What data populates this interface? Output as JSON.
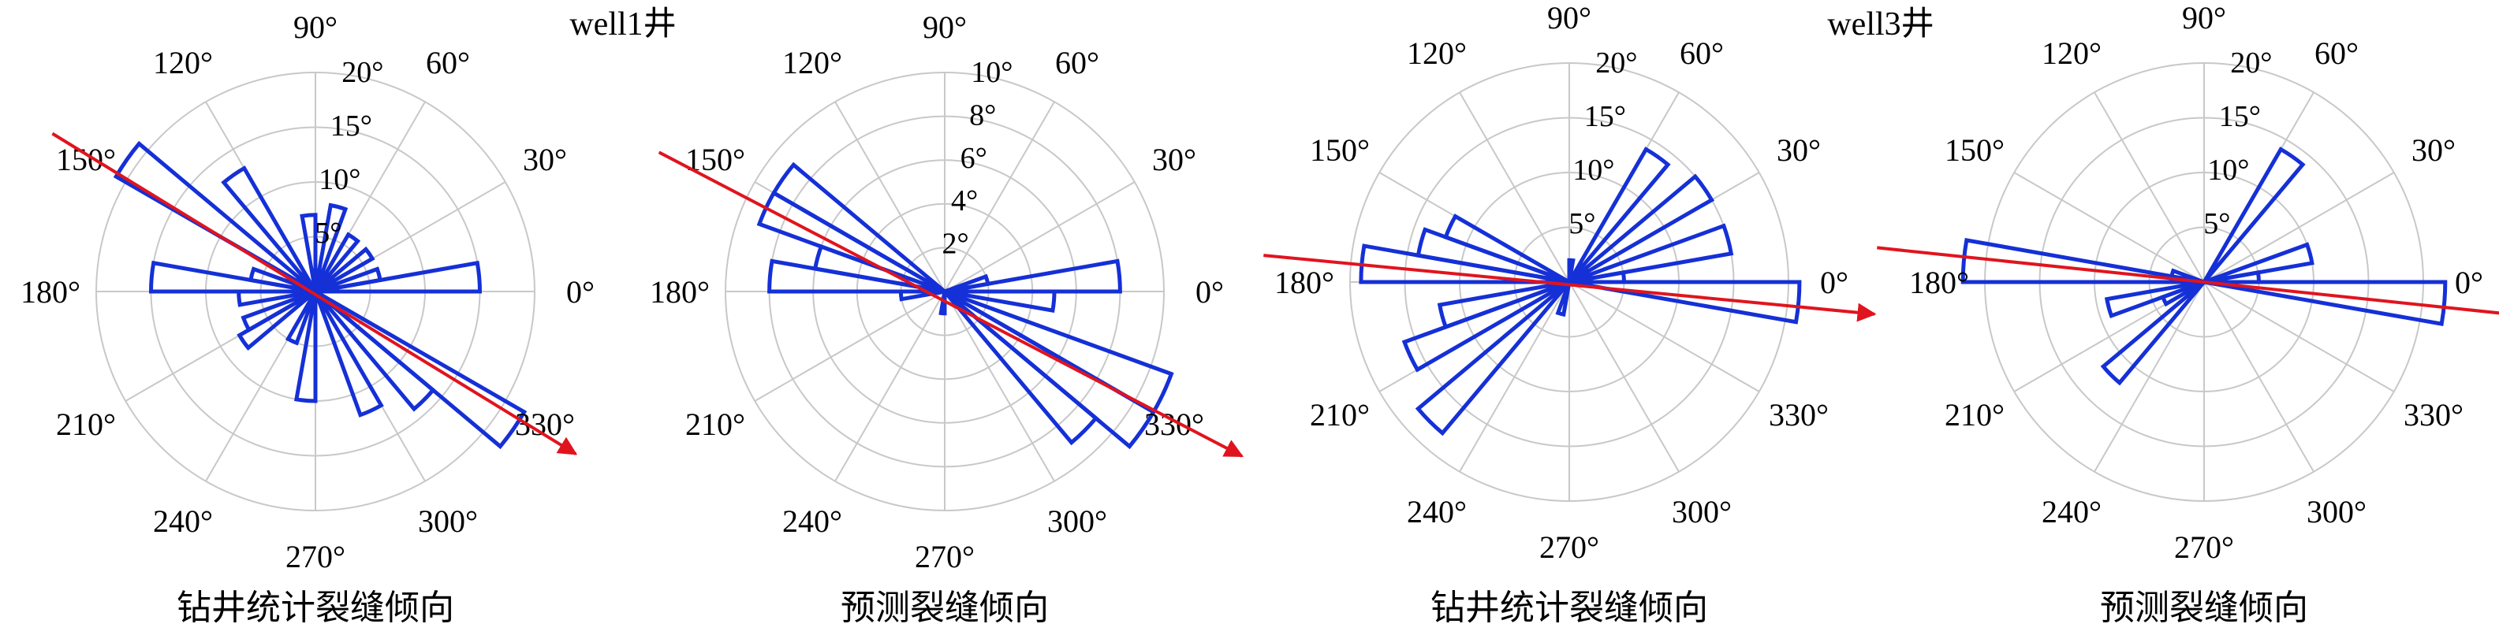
{
  "figure": {
    "well_titles": [
      "well1井",
      "well3井"
    ],
    "colors": {
      "grid": "#c8c8c8",
      "bars": "#1530d6",
      "trend": "#e0141e",
      "text": "#000000"
    }
  },
  "chart_data": [
    {
      "type": "polar-histogram",
      "well_title": "well1井",
      "caption": "钻井统计裂缝倾向",
      "angle_labels": [
        "0°",
        "30°",
        "60°",
        "90°",
        "120°",
        "150°",
        "180°",
        "210°",
        "240°",
        "270°",
        "300°",
        "330°"
      ],
      "radial_ticks": [
        5,
        10,
        15,
        20
      ],
      "radial_tick_labels": [
        "5°",
        "10°",
        "15°",
        "20°"
      ],
      "rmax": 20,
      "bin_width_deg": 10,
      "bins": [
        {
          "angle": 5,
          "value": 15
        },
        {
          "angle": 15,
          "value": 6
        },
        {
          "angle": 35,
          "value": 6
        },
        {
          "angle": 55,
          "value": 6
        },
        {
          "angle": 75,
          "value": 8
        },
        {
          "angle": 95,
          "value": 7
        },
        {
          "angle": 125,
          "value": 13
        },
        {
          "angle": 145,
          "value": 21
        },
        {
          "angle": 165,
          "value": 6
        },
        {
          "angle": 175,
          "value": 15
        },
        {
          "angle": 185,
          "value": 7
        },
        {
          "angle": 205,
          "value": 7
        },
        {
          "angle": 215,
          "value": 8
        },
        {
          "angle": 245,
          "value": 5
        },
        {
          "angle": 265,
          "value": 10
        },
        {
          "angle": 295,
          "value": 12
        },
        {
          "angle": 315,
          "value": 14
        },
        {
          "angle": 325,
          "value": 22
        }
      ],
      "trend_arrow": {
        "tail_angle": 149,
        "tail_value": 28,
        "head_angle": 328,
        "head_value": 28
      }
    },
    {
      "type": "polar-histogram",
      "caption": "预测裂缝倾向",
      "angle_labels": [
        "0°",
        "30°",
        "60°",
        "90°",
        "120°",
        "150°",
        "180°",
        "210°",
        "240°",
        "270°",
        "300°",
        "330°"
      ],
      "radial_ticks": [
        2,
        4,
        6,
        8,
        10
      ],
      "radial_tick_labels": [
        "2°",
        "4°",
        "6°",
        "8°",
        "10°"
      ],
      "rmax": 10,
      "bin_width_deg": 10,
      "bins": [
        {
          "angle": 5,
          "value": 8
        },
        {
          "angle": 15,
          "value": 2
        },
        {
          "angle": 145,
          "value": 9
        },
        {
          "angle": 155,
          "value": 9
        },
        {
          "angle": 165,
          "value": 6
        },
        {
          "angle": 175,
          "value": 8
        },
        {
          "angle": 185,
          "value": 2
        },
        {
          "angle": 265,
          "value": 1
        },
        {
          "angle": 315,
          "value": 9
        },
        {
          "angle": 325,
          "value": 11
        },
        {
          "angle": 335,
          "value": 11
        },
        {
          "angle": 355,
          "value": 5
        }
      ],
      "trend_arrow": {
        "tail_angle": 154,
        "tail_value": 14.5,
        "head_angle": 331,
        "head_value": 15.5
      }
    },
    {
      "type": "polar-histogram",
      "well_title": "well3井",
      "caption": "钻井统计裂缝倾向",
      "angle_labels": [
        "0°",
        "30°",
        "60°",
        "90°",
        "120°",
        "150°",
        "180°",
        "210°",
        "240°",
        "270°",
        "300°",
        "330°"
      ],
      "radial_ticks": [
        5,
        10,
        15,
        20
      ],
      "radial_tick_labels": [
        "5°",
        "10°",
        "15°",
        "20°"
      ],
      "rmax": 20,
      "bin_width_deg": 10,
      "bins": [
        {
          "angle": 5,
          "value": 5
        },
        {
          "angle": 355,
          "value": 21
        },
        {
          "angle": 15,
          "value": 15
        },
        {
          "angle": 35,
          "value": 15
        },
        {
          "angle": 55,
          "value": 14
        },
        {
          "angle": 85,
          "value": 2
        },
        {
          "angle": 155,
          "value": 12
        },
        {
          "angle": 165,
          "value": 14
        },
        {
          "angle": 175,
          "value": 19
        },
        {
          "angle": 195,
          "value": 12
        },
        {
          "angle": 205,
          "value": 16
        },
        {
          "angle": 225,
          "value": 18
        },
        {
          "angle": 255,
          "value": 3
        }
      ],
      "trend_arrow": {
        "tail_angle": 175,
        "tail_value": 28,
        "head_angle": 354,
        "head_value": 28
      }
    },
    {
      "type": "polar-histogram",
      "caption": "预测裂缝倾向",
      "angle_labels": [
        "0°",
        "30°",
        "60°",
        "90°",
        "120°",
        "150°",
        "180°",
        "210°",
        "240°",
        "270°",
        "300°",
        "330°"
      ],
      "radial_ticks": [
        5,
        10,
        15,
        20
      ],
      "radial_tick_labels": [
        "5°",
        "10°",
        "15°",
        "20°"
      ],
      "rmax": 20,
      "bin_width_deg": 10,
      "bins": [
        {
          "angle": 5,
          "value": 5
        },
        {
          "angle": 355,
          "value": 22
        },
        {
          "angle": 15,
          "value": 10
        },
        {
          "angle": 55,
          "value": 14
        },
        {
          "angle": 165,
          "value": 3
        },
        {
          "angle": 175,
          "value": 22
        },
        {
          "angle": 195,
          "value": 9
        },
        {
          "angle": 205,
          "value": 4
        },
        {
          "angle": 225,
          "value": 12
        }
      ],
      "trend_arrow": {
        "tail_angle": 174,
        "tail_value": 30,
        "head_angle": 354,
        "head_value": 30
      }
    }
  ]
}
